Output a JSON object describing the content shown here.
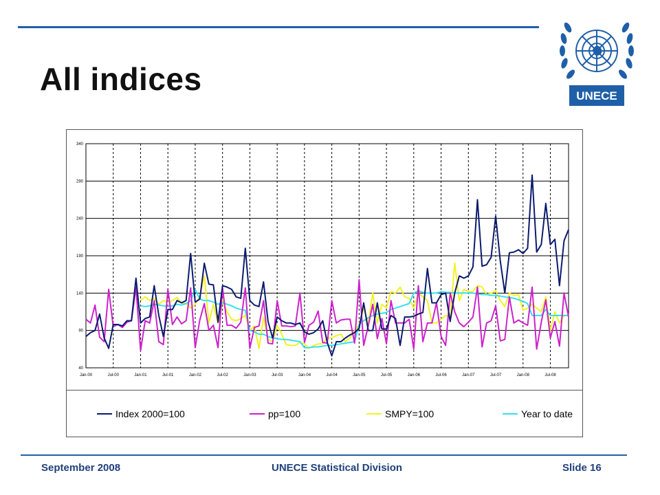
{
  "title": "All indices",
  "footer": {
    "left": "September 2008",
    "center": "UNECE Statistical Division",
    "right": "Slide 16"
  },
  "logo": {
    "label": "UNECE",
    "icon": "un-emblem-icon",
    "color": "#1f5fa8"
  },
  "colors": {
    "accent": "#1f5fa8",
    "index": "#0b1a6e",
    "pp": "#cc22cc",
    "smpy": "#f2f224",
    "ytd": "#33e0ee"
  },
  "chart_data": {
    "type": "line",
    "ylim": [
      40,
      340
    ],
    "yticks": [
      40,
      90,
      140,
      190,
      240,
      290,
      340
    ],
    "grid": true,
    "legend": "bottom",
    "xticks": [
      "Jan-00",
      "Jul-00",
      "Jan-01",
      "Jul-01",
      "Jan-02",
      "Jul-02",
      "Jan-03",
      "Jul-03",
      "Jan-04",
      "Jul-04",
      "Jan-05",
      "Jul-05",
      "Jan-06",
      "Jul-06",
      "Jan-07",
      "Jul-07",
      "Jan-08",
      "Jul-08"
    ],
    "x_start": "Jan-00",
    "series": [
      {
        "name": "Index 2000=100",
        "color": "#0b1a6e",
        "values": [
          82,
          87,
          90,
          112,
          80,
          66,
          98,
          98,
          96,
          103,
          103,
          160,
          100,
          106,
          108,
          150,
          110,
          82,
          118,
          118,
          130,
          127,
          130,
          193,
          128,
          132,
          180,
          152,
          151,
          101,
          150,
          148,
          145,
          135,
          133,
          200,
          130,
          124,
          122,
          155,
          102,
          80,
          108,
          103,
          100,
          100,
          98,
          100,
          88,
          85,
          87,
          92,
          103,
          74,
          56,
          75,
          75,
          80,
          84,
          87,
          93,
          127,
          90,
          90,
          127,
          92,
          92,
          110,
          106,
          70,
          108,
          108,
          109,
          112,
          114,
          173,
          127,
          127,
          138,
          140,
          102,
          140,
          163,
          160,
          163,
          175,
          265,
          176,
          178,
          188,
          243,
          183,
          140,
          194,
          195,
          198,
          193,
          200,
          298,
          195,
          205,
          260,
          205,
          212,
          150,
          210,
          225
        ]
      },
      {
        "name": "pp=100",
        "color": "#cc22cc",
        "values": [
          105,
          100,
          124,
          81,
          75,
          145,
          95,
          98,
          94,
          101,
          103,
          148,
          63,
          103,
          100,
          130,
          75,
          71,
          145,
          98,
          108,
          99,
          103,
          147,
          67,
          104,
          126,
          90,
          97,
          67,
          147,
          97,
          97,
          93,
          101,
          147,
          66,
          94,
          96,
          130,
          73,
          72,
          130,
          96,
          96,
          95,
          96,
          140,
          74,
          97,
          101,
          116,
          74,
          73,
          130,
          100,
          104,
          105,
          105,
          73,
          158,
          70,
          96,
          125,
          79,
          106,
          72,
          130,
          100,
          100,
          100,
          105,
          65,
          150,
          75,
          100,
          100,
          127,
          82,
          70,
          140,
          115,
          100,
          95,
          101,
          108,
          148,
          68,
          100,
          103,
          123,
          76,
          78,
          135,
          100,
          104,
          100,
          97,
          148,
          65,
          101,
          131,
          80,
          102,
          69,
          140,
          108
        ]
      },
      {
        "name": "SMPY=100",
        "color": "#f2f224",
        "values": [
          null,
          null,
          null,
          null,
          null,
          null,
          null,
          null,
          null,
          null,
          null,
          null,
          130,
          135,
          130,
          133,
          125,
          130,
          128,
          130,
          134,
          127,
          126,
          120,
          125,
          135,
          163,
          100,
          125,
          100,
          130,
          115,
          105,
          103,
          106,
          110,
          90,
          96,
          66,
          108,
          78,
          75,
          97,
          85,
          71,
          70,
          70,
          74,
          72,
          66,
          70,
          72,
          72,
          80,
          80,
          83,
          85,
          75,
          80,
          90,
          98,
          120,
          100,
          140,
          100,
          125,
          120,
          142,
          140,
          148,
          135,
          133,
          120,
          140,
          135,
          130,
          100,
          100,
          105,
          110,
          108,
          180,
          130,
          145,
          142,
          142,
          150,
          148,
          138,
          140,
          143,
          130,
          122,
          140,
          137,
          138,
          117,
          120,
          125,
          120,
          115,
          135,
          90,
          115,
          100,
          110,
          110
        ]
      },
      {
        "name": "Year to date",
        "color": "#33e0ee",
        "values": [
          null,
          null,
          null,
          null,
          null,
          null,
          null,
          null,
          null,
          null,
          null,
          null,
          123,
          122,
          123,
          125,
          124,
          123,
          122,
          123,
          125,
          124,
          126,
          130,
          145,
          132,
          130,
          130,
          128,
          125,
          127,
          125,
          123,
          120,
          118,
          117,
          90,
          88,
          85,
          85,
          82,
          80,
          79,
          78,
          78,
          77,
          76,
          75,
          67,
          67,
          68,
          68,
          69,
          70,
          70,
          71,
          72,
          73,
          74,
          75,
          98,
          103,
          107,
          110,
          112,
          113,
          114,
          118,
          120,
          122,
          124,
          126,
          140,
          143,
          141,
          140,
          140,
          140,
          142,
          141,
          141,
          140,
          140,
          140,
          140,
          140,
          139,
          138,
          138,
          137,
          137,
          136,
          135,
          134,
          133,
          131,
          129,
          126,
          110,
          110,
          110,
          118,
          110,
          110,
          110,
          110,
          110
        ]
      }
    ]
  }
}
